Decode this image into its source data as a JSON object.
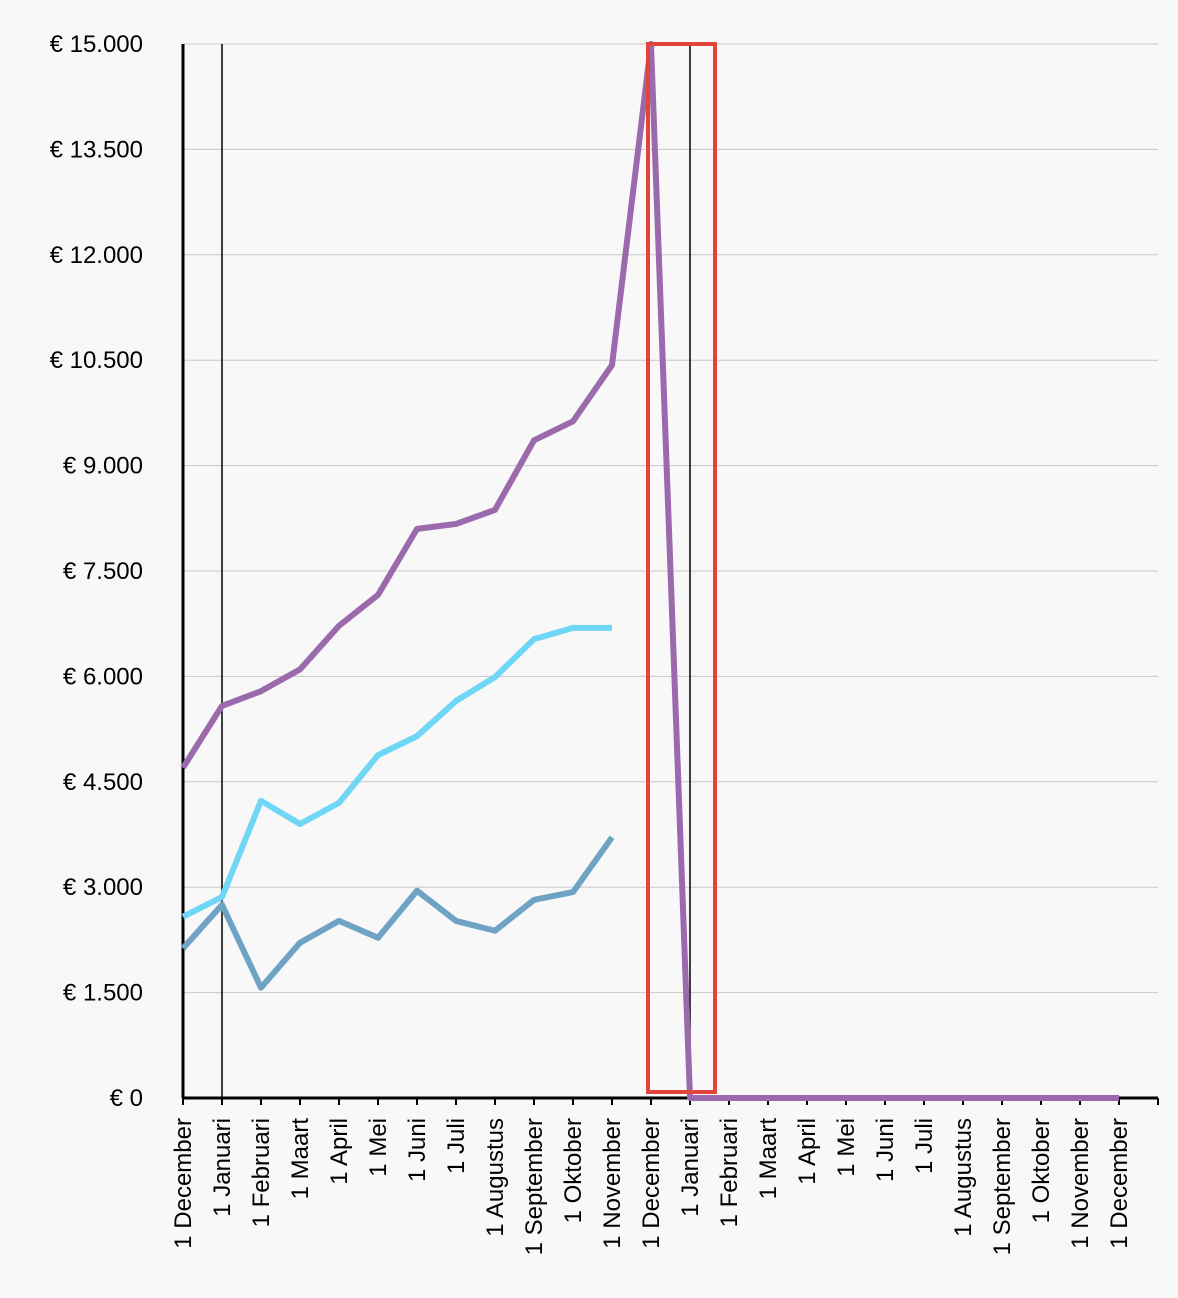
{
  "chart_data": {
    "type": "line",
    "categories": [
      "1 December",
      "1 Januari",
      "1 Februari",
      "1 Maart",
      "1 April",
      "1 Mei",
      "1 Juni",
      "1 Juli",
      "1 Augustus",
      "1 September",
      "1 Oktober",
      "1 November",
      "1 December",
      "1 Januari",
      "1 Februari",
      "1 Maart",
      "1 April",
      "1 Mei",
      "1 Juni",
      "1 Juli",
      "1 Augustus",
      "1 September",
      "1 Oktober",
      "1 November",
      "1 December"
    ],
    "series": [
      {
        "color": "#9b6aad",
        "values": [
          4700,
          5580,
          5790,
          6100,
          6720,
          7160,
          8100,
          8170,
          8370,
          9360,
          9630,
          10430,
          15000,
          0,
          0,
          0,
          0,
          0,
          0,
          0,
          0,
          0,
          0,
          0,
          0
        ]
      },
      {
        "color": "#6fd6f5",
        "values": [
          2580,
          2860,
          4230,
          3900,
          4200,
          4880,
          5150,
          5650,
          5990,
          6530,
          6690,
          6690,
          null,
          null,
          null,
          null,
          null,
          null,
          null,
          null,
          null,
          null,
          null,
          null,
          null
        ]
      },
      {
        "color": "#6fa3c4",
        "values": [
          2130,
          2750,
          1570,
          2210,
          2520,
          2280,
          2950,
          2520,
          2380,
          2820,
          2930,
          3710,
          null,
          null,
          null,
          null,
          null,
          null,
          null,
          null,
          null,
          null,
          null,
          null,
          null
        ]
      }
    ],
    "ylim": [
      0,
      15000
    ],
    "yticks": [
      {
        "value": 0,
        "label": "€ 0"
      },
      {
        "value": 1500,
        "label": "€ 1.500"
      },
      {
        "value": 3000,
        "label": "€ 3.000"
      },
      {
        "value": 4500,
        "label": "€ 4.500"
      },
      {
        "value": 6000,
        "label": "€ 6.000"
      },
      {
        "value": 7500,
        "label": "€ 7.500"
      },
      {
        "value": 9000,
        "label": "€ 9.000"
      },
      {
        "value": 10500,
        "label": "€ 10.500"
      },
      {
        "value": 12000,
        "label": "€ 12.000"
      },
      {
        "value": 13500,
        "label": "€ 13.500"
      },
      {
        "value": 15000,
        "label": "€ 15.000"
      }
    ],
    "grid": true
  }
}
